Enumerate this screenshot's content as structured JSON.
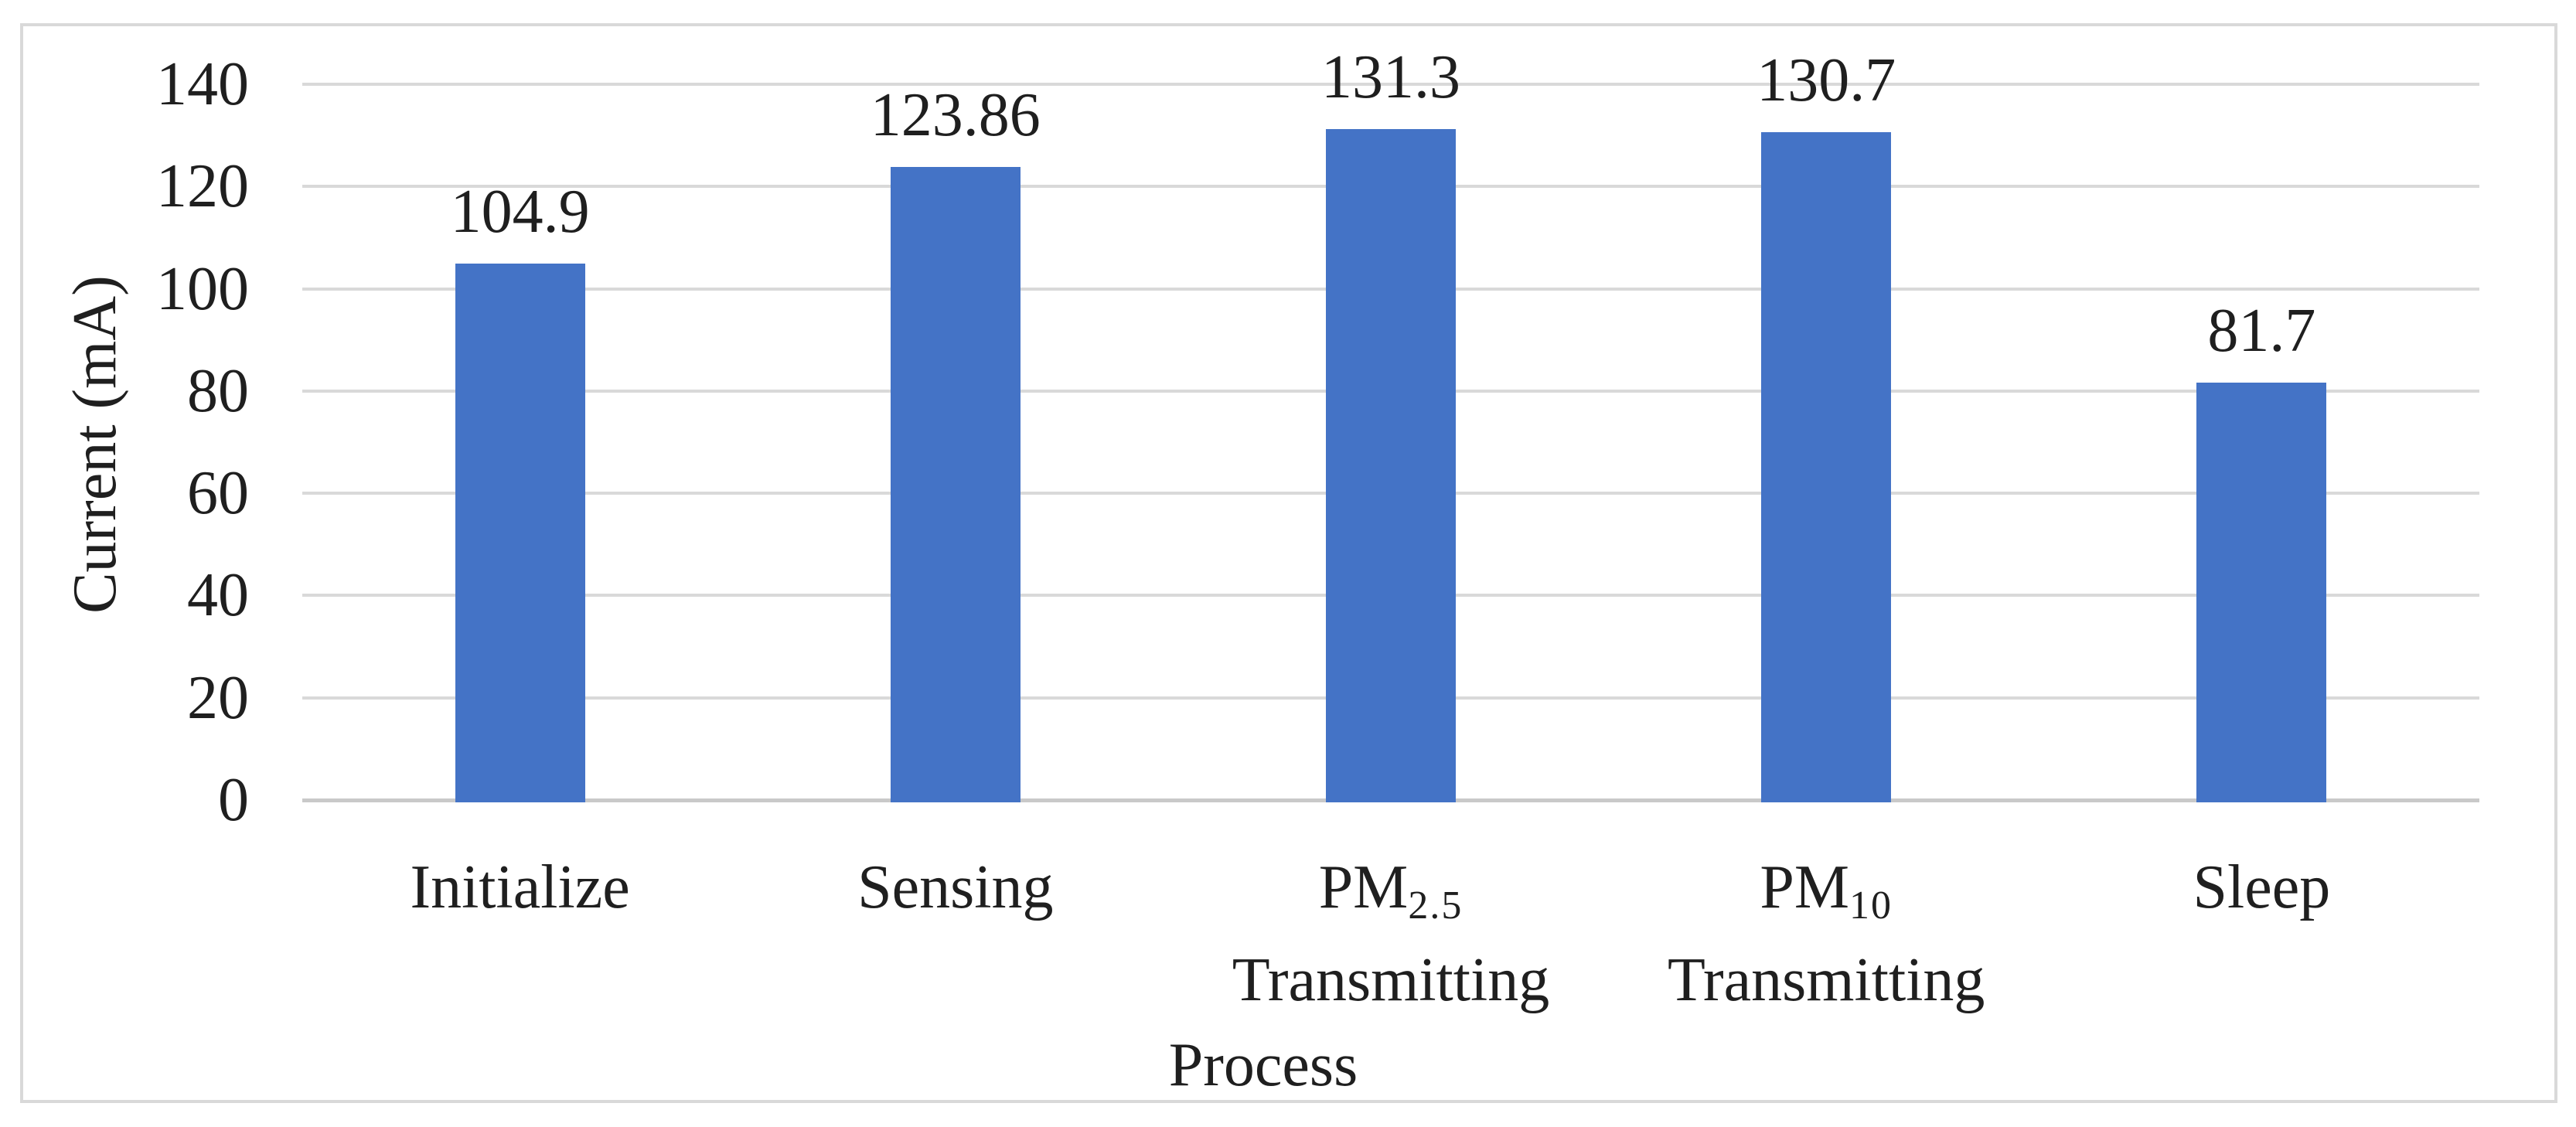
{
  "chart_data": {
    "type": "bar",
    "title": "",
    "xlabel": "Process",
    "ylabel": "Current (mA)",
    "ylim": [
      0,
      140
    ],
    "ytick_step": 20,
    "yticks": [
      0,
      20,
      40,
      60,
      80,
      100,
      120,
      140
    ],
    "grid": true,
    "legend": false,
    "categories": [
      {
        "id": "initialize",
        "line1": "Initialize",
        "sub": "",
        "line2": ""
      },
      {
        "id": "sensing",
        "line1": "Sensing",
        "sub": "",
        "line2": ""
      },
      {
        "id": "pm25-transmitting",
        "line1": "PM",
        "sub": "2.5",
        "line2": "Transmitting"
      },
      {
        "id": "pm10-transmitting",
        "line1": "PM",
        "sub": "10",
        "line2": "Transmitting"
      },
      {
        "id": "sleep",
        "line1": "Sleep",
        "sub": "",
        "line2": ""
      }
    ],
    "values": [
      104.9,
      123.86,
      131.3,
      130.7,
      81.7
    ],
    "data_labels": [
      "104.9",
      "123.86",
      "131.3",
      "130.7",
      "81.7"
    ],
    "colors": {
      "bar": "#4473c6",
      "gridline": "#d9d9d9",
      "axis_line": "#c9c9c9",
      "frame_border": "#d9d9d9",
      "text": "#1f1f1f",
      "background": "#ffffff"
    }
  }
}
